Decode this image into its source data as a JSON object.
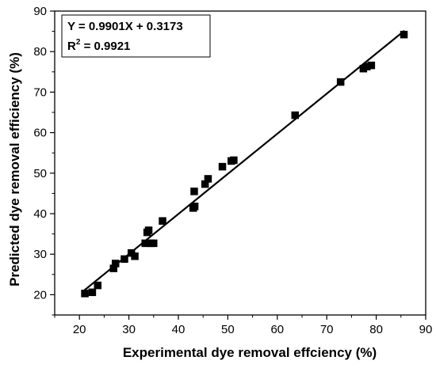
{
  "chart_data": {
    "type": "scatter",
    "title": "",
    "xlabel": "Experimental dye removal effciency (%)",
    "ylabel": "Predicted dye removal efficiency (%)",
    "xlim": [
      15,
      90
    ],
    "ylim": [
      15,
      90
    ],
    "xticks": [
      20,
      30,
      40,
      50,
      60,
      70,
      80,
      90
    ],
    "yticks": [
      20,
      30,
      40,
      50,
      60,
      70,
      80,
      90
    ],
    "grid": false,
    "series": [
      {
        "marker": "square",
        "color": "#000000",
        "points": [
          [
            21.1,
            20.3
          ],
          [
            22.6,
            20.6
          ],
          [
            23.7,
            22.3
          ],
          [
            26.9,
            26.5
          ],
          [
            27.3,
            27.7
          ],
          [
            29.1,
            28.8
          ],
          [
            30.5,
            30.3
          ],
          [
            31.2,
            29.5
          ],
          [
            33.3,
            32.7
          ],
          [
            33.7,
            35.4
          ],
          [
            34.0,
            35.9
          ],
          [
            34.4,
            32.7
          ],
          [
            35.0,
            32.7
          ],
          [
            36.8,
            38.2
          ],
          [
            43.0,
            41.4
          ],
          [
            43.3,
            41.8
          ],
          [
            43.2,
            45.5
          ],
          [
            45.4,
            47.3
          ],
          [
            46.0,
            48.6
          ],
          [
            48.9,
            51.6
          ],
          [
            50.7,
            53.0
          ],
          [
            51.2,
            53.2
          ],
          [
            63.6,
            64.3
          ],
          [
            72.8,
            72.5
          ],
          [
            77.4,
            75.8
          ],
          [
            78.1,
            76.3
          ],
          [
            79.0,
            76.6
          ],
          [
            85.6,
            84.2
          ]
        ]
      }
    ],
    "fit_line": {
      "slope": 0.9901,
      "intercept": 0.3173,
      "x_range": [
        21,
        85.7
      ]
    },
    "annotation": {
      "equation": "Y = 0.9901X + 0.3173",
      "r2_prefix": "R",
      "r2_sup": "2",
      "r2_value": " = 0.9921"
    }
  }
}
